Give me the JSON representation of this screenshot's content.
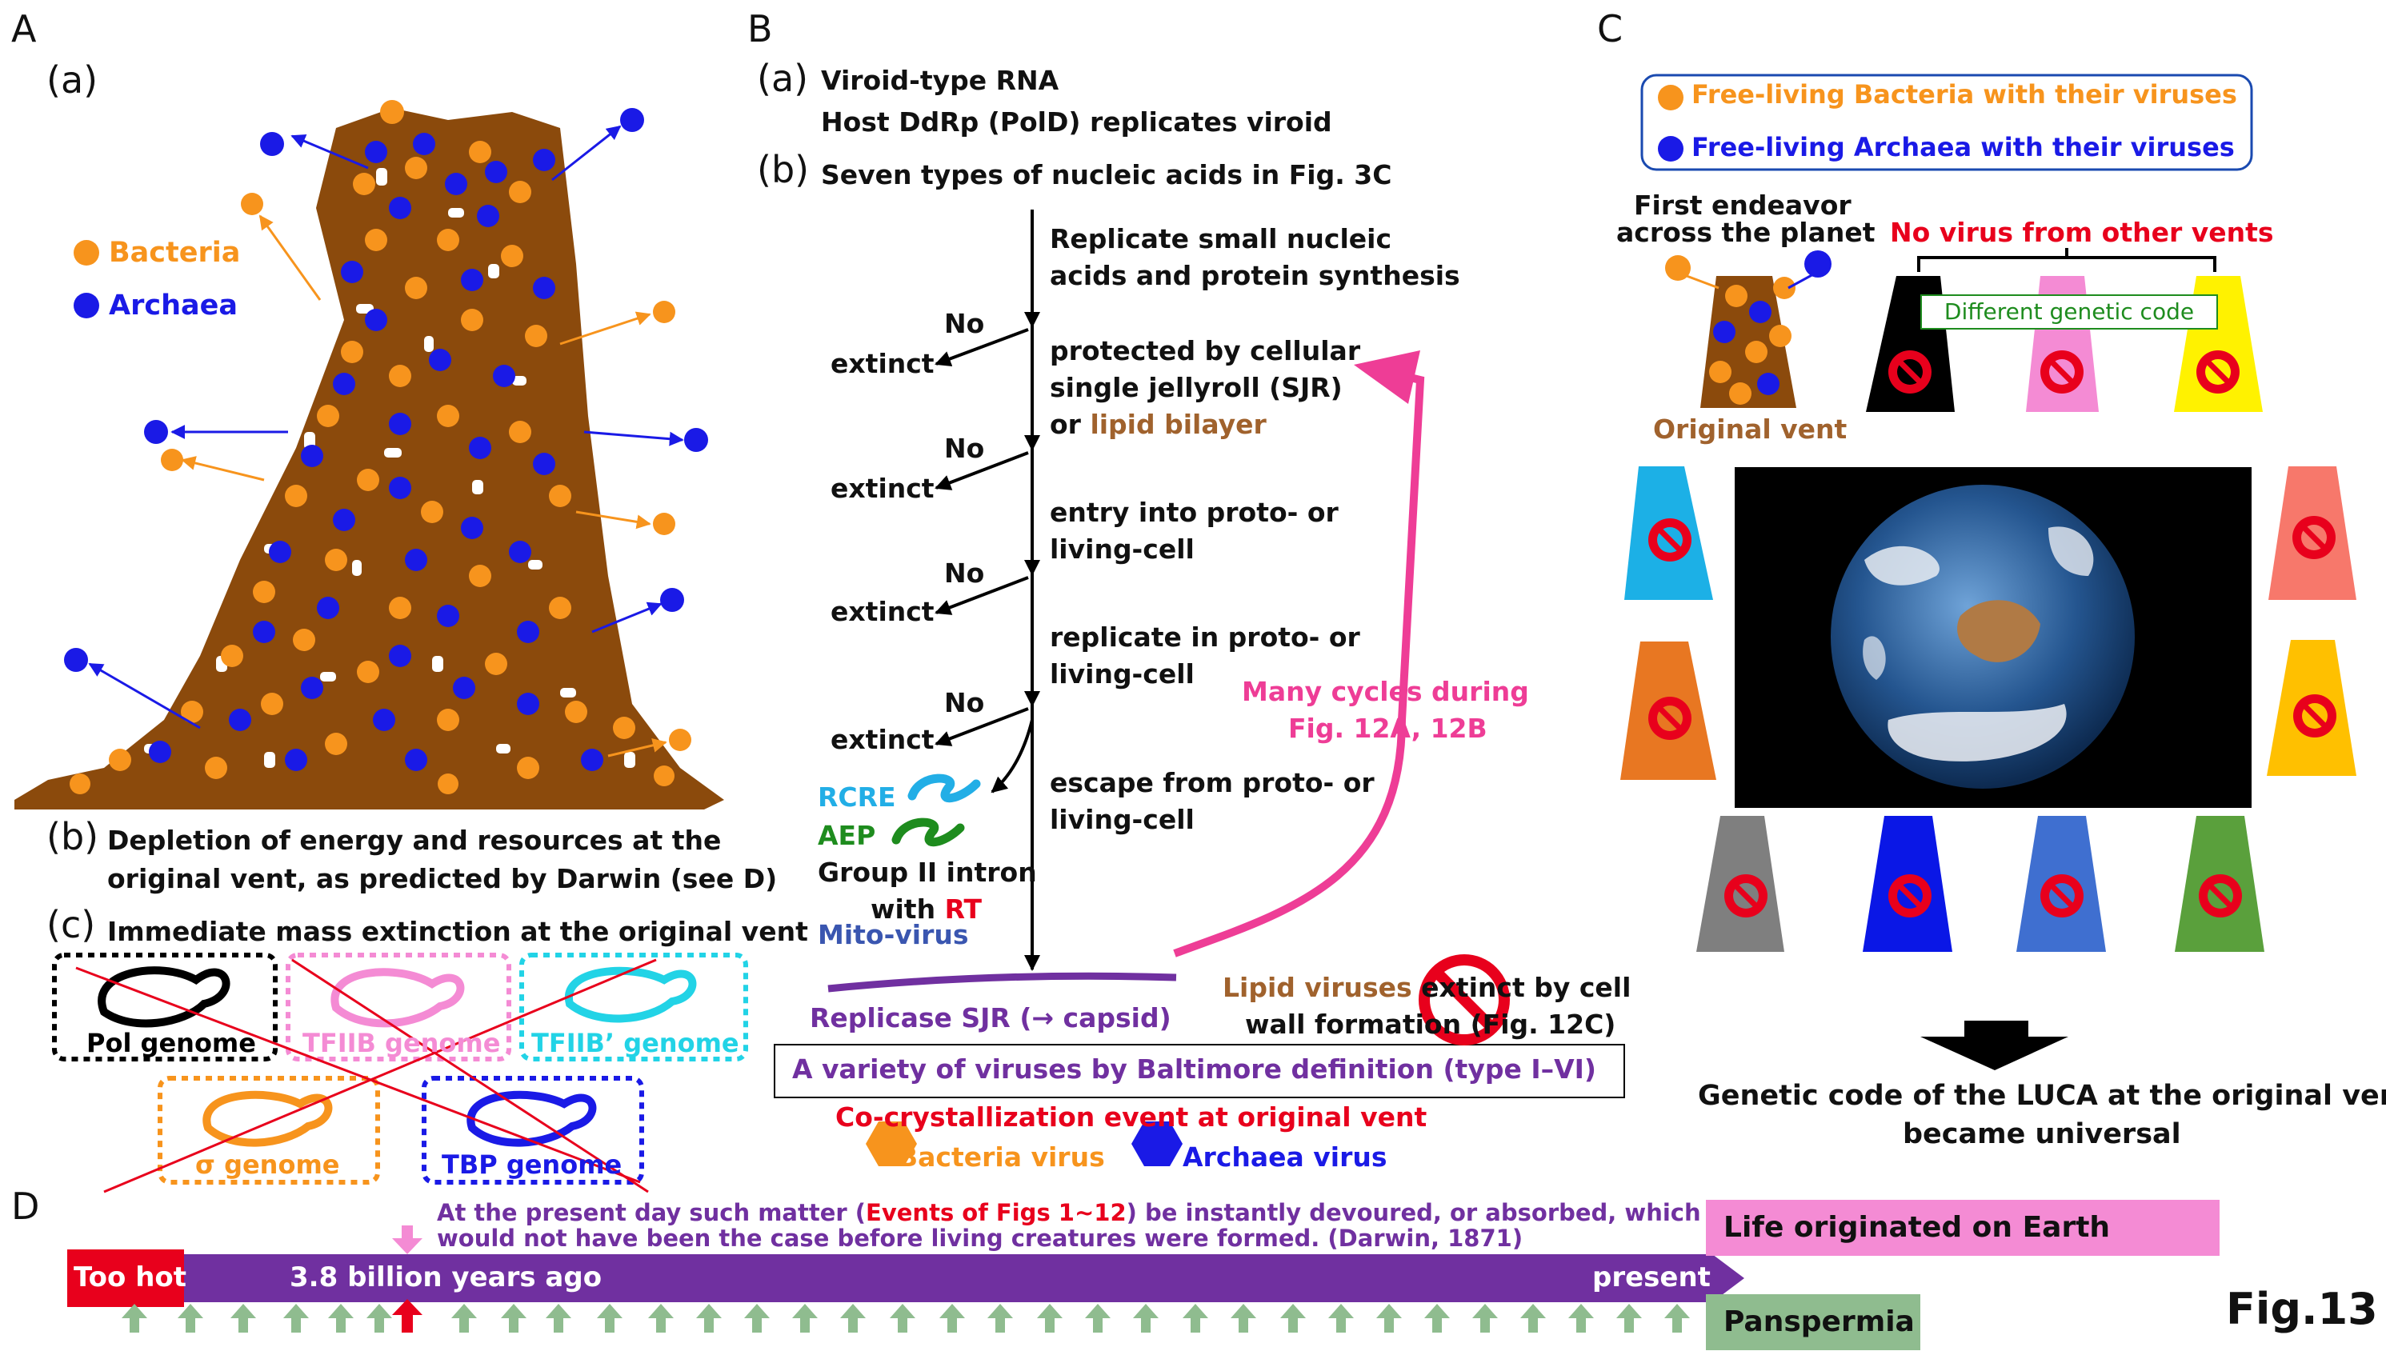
{
  "panel_labels": {
    "A": "A",
    "B": "B",
    "C": "C",
    "D": "D"
  },
  "colors": {
    "bacteria": "#F7941D",
    "archaea": "#1A1AE6",
    "rock": "#8B4A0C",
    "purple": "#7030A0",
    "pink": "#EE3D96",
    "red": "#E8001C",
    "olive_brown": "#A0622D",
    "green_arrow": "#8FBC8F"
  },
  "panelA": {
    "sub_a": "(a)",
    "legend_bacteria": "Bacteria",
    "legend_archaea": "Archaea",
    "sub_b": "(b)",
    "b_line1": "Depletion of energy and resources at the",
    "b_line2": "original vent, as predicted by Darwin (see D)",
    "sub_c": "(c)",
    "c_text": "Immediate mass extinction at the original vent",
    "genomes": [
      {
        "label": "Pol genome",
        "color": "#000000"
      },
      {
        "label": "TFIIB genome",
        "color": "#F48BD4"
      },
      {
        "label": "TFIIB’ genome",
        "color": "#22D3E6"
      },
      {
        "label": "σ genome",
        "color": "#F7941D"
      },
      {
        "label": "TBP genome",
        "color": "#1A1AE6"
      }
    ]
  },
  "panelB": {
    "sub_a": "(a)",
    "a_line1": "Viroid-type RNA",
    "a_line2": "Host DdRp (PolD) replicates viroid",
    "sub_b": "(b)",
    "b_text": "Seven types of nucleic acids in Fig. 3C",
    "steps": [
      {
        "line1": "Replicate small nucleic",
        "line2": "acids and protein synthesis"
      },
      {
        "line1": "protected by cellular",
        "line2": "single jellyroll (SJR)",
        "line3a": "or ",
        "line3b": "lipid bilayer"
      },
      {
        "line1": "entry into proto- or",
        "line2": "living-cell"
      },
      {
        "line1": "replicate in proto- or",
        "line2": "living-cell"
      },
      {
        "line1": "escape from proto- or",
        "line2": "living-cell"
      }
    ],
    "no_label": "No",
    "extinct_label": "extinct",
    "rcre": "RCRE",
    "aep": "AEP",
    "group2_line1": "Group II intron",
    "group2_with": "with ",
    "group2_rt": "RT",
    "mito": "Mito-virus",
    "replicase": "Replicase SJR (→ capsid)",
    "lipid_line1a": "Lipid viruses ",
    "lipid_line1b": "extinct by cell",
    "lipid_line2": "wall formation (Fig. 12C)",
    "cycles_line1": "Many cycles during",
    "cycles_line2": "Fig. 12A, 12B",
    "baltimore": "A variety of viruses by Baltimore definition (type I–VI)",
    "cocrystal": "Co-crystallization event at original vent",
    "bacteria_virus": "Bacteria virus",
    "archaea_virus": "Archaea virus"
  },
  "panelC": {
    "legend_bacteria": "Free-living Bacteria with their viruses",
    "legend_archaea": "Free-living Archaea with their viruses",
    "first_line1": "First endeavor",
    "first_line2": "across the planet",
    "no_virus": "No virus from other vents",
    "diff_code": "Different genetic code",
    "original_vent": "Original vent",
    "conclusion_line1": "Genetic code of the LUCA at the original vent",
    "conclusion_line2": "became universal",
    "vent_colors": [
      "#000000",
      "#F48BD4",
      "#FFF200",
      "#1CB0E6",
      "#F7786B",
      "#E87722",
      "#FFC000",
      "#7F7F7F",
      "#0A17E6",
      "#3F6FD0",
      "#5AA03C"
    ]
  },
  "panelD": {
    "quote_line1a": "At the present day such matter (",
    "quote_line1b": "Events of Figs 1~12",
    "quote_line1c": ") be instantly devoured, or absorbed, which",
    "quote_line2": "would not have been the case before living creatures were formed. (Darwin, 1871)",
    "too_hot": "Too hot",
    "billion": "3.8 billion years ago",
    "present": "present",
    "life_earth": "Life originated on Earth",
    "panspermia": "Panspermia"
  },
  "fig_label": "Fig.13"
}
